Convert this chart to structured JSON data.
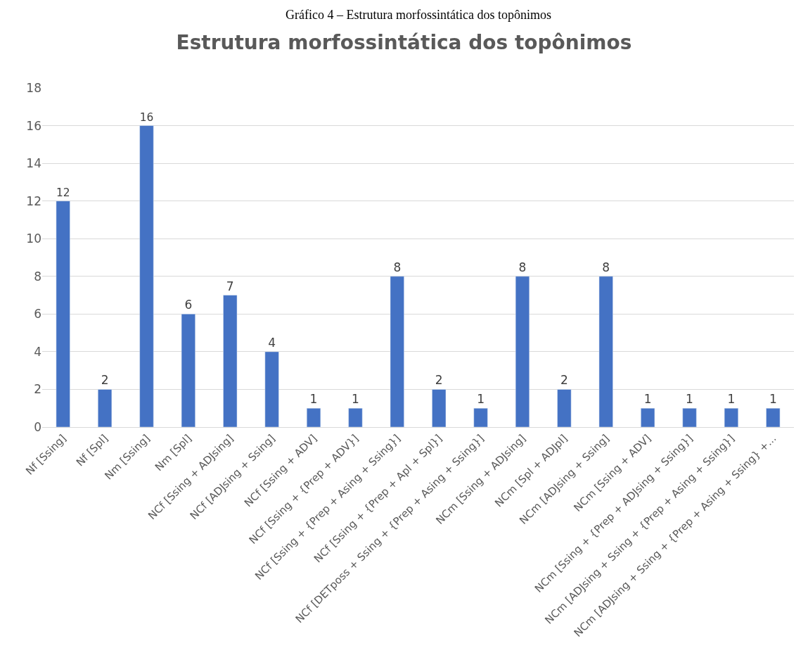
{
  "chart_data": {
    "type": "bar",
    "title": "Estrutura morfossintática dos topônimos",
    "annotations": [
      "Gráfico 4 – Estrutura morfossintática dos topônimos"
    ],
    "categories": [
      "Nf [Ssing]",
      "Nf [Spl]",
      "Nm [Ssing]",
      "Nm [Spl]",
      "NCf [Ssing + ADJsing]",
      "NCf [ADJsing + Ssing]",
      "NCf [Ssing + ADV]",
      "NCf [Ssing + {Prep + ADV}]",
      "NCf [Ssing + {Prep + Asing + Ssing}]",
      "NCf [Ssing + {Prep + Apl + Spl}]",
      "NCf [DETposs + Ssing + {Prep + Asing + Ssing}]",
      "NCm [Ssing + ADJsing]",
      "NCm [Spl + ADJpl]",
      "NCm [ADJsing + Ssing]",
      "NCm [Ssing + ADV]",
      "NCm [Ssing + {Prep + ADJsing + Ssing}]",
      "NCm [ADJsing + Ssing + {Prep + Asing + Ssing}]",
      "NCm [ADJsing + Ssing + {Prep + Asing + Ssing} +..."
    ],
    "values": [
      12,
      2,
      16,
      6,
      7,
      4,
      1,
      1,
      8,
      2,
      1,
      8,
      2,
      8,
      1,
      1,
      1,
      1
    ],
    "color": "#4472c4",
    "ylim": [
      0,
      18
    ],
    "yticks": [
      0,
      2,
      4,
      6,
      8,
      10,
      12,
      14,
      16,
      18
    ],
    "grid": "y",
    "data_labels": true,
    "legend": false
  }
}
